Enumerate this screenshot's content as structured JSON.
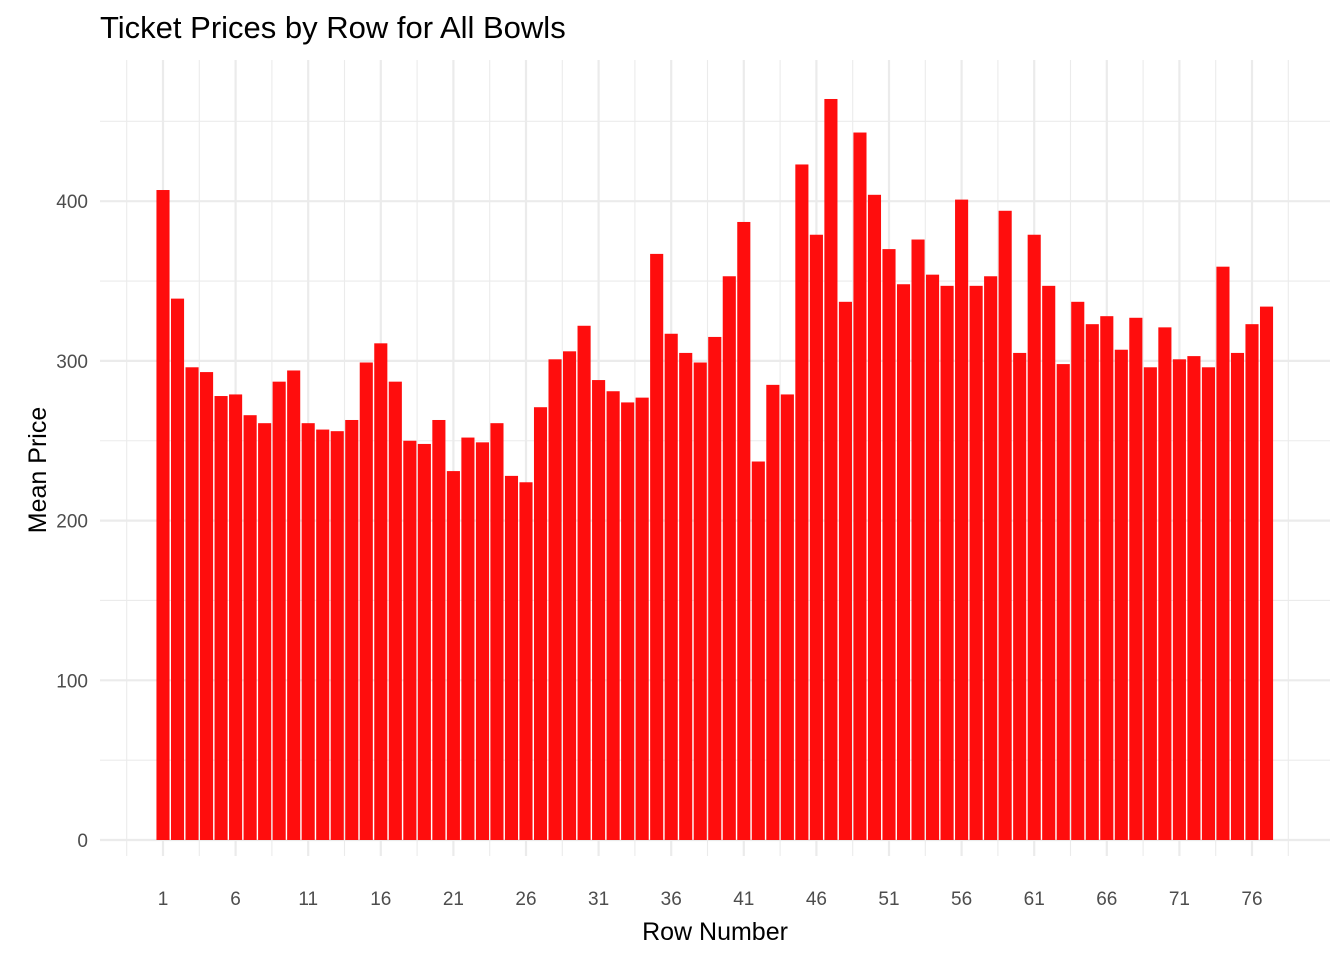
{
  "chart_data": {
    "type": "bar",
    "title": "Ticket Prices by Row for All Bowls",
    "xlabel": "Row Number",
    "ylabel": "Mean Price",
    "bar_color": "#ff0d0d",
    "grid": true,
    "grid_color": "#ebebeb",
    "ylim": [
      0,
      465
    ],
    "y_ticks": [
      0,
      100,
      200,
      300,
      400
    ],
    "x_ticks": [
      1,
      6,
      11,
      16,
      21,
      26,
      31,
      36,
      41,
      46,
      51,
      56,
      61,
      66,
      71,
      76
    ],
    "categories": [
      1,
      2,
      3,
      4,
      5,
      6,
      7,
      8,
      9,
      10,
      11,
      12,
      13,
      14,
      15,
      16,
      17,
      18,
      19,
      20,
      21,
      22,
      23,
      24,
      25,
      26,
      27,
      28,
      29,
      30,
      31,
      32,
      33,
      34,
      35,
      36,
      37,
      38,
      39,
      40,
      41,
      42,
      43,
      44,
      45,
      46,
      47,
      48,
      49,
      50,
      51,
      52,
      53,
      54,
      55,
      56,
      57,
      58,
      59,
      60,
      61,
      62,
      63,
      64,
      65,
      66,
      67,
      68,
      69,
      70,
      71,
      72,
      73,
      74,
      75,
      76,
      77
    ],
    "values": [
      407,
      339,
      296,
      293,
      278,
      279,
      266,
      261,
      287,
      294,
      261,
      257,
      256,
      263,
      299,
      311,
      287,
      250,
      248,
      263,
      231,
      252,
      249,
      261,
      228,
      224,
      271,
      301,
      306,
      322,
      288,
      281,
      274,
      277,
      367,
      317,
      305,
      299,
      315,
      353,
      387,
      237,
      285,
      279,
      423,
      379,
      464,
      337,
      443,
      404,
      370,
      348,
      376,
      354,
      347,
      401,
      347,
      353,
      394,
      305,
      379,
      347,
      298,
      337,
      323,
      328,
      307,
      327,
      296,
      321,
      301,
      303,
      296,
      359,
      305,
      323,
      334
    ]
  }
}
